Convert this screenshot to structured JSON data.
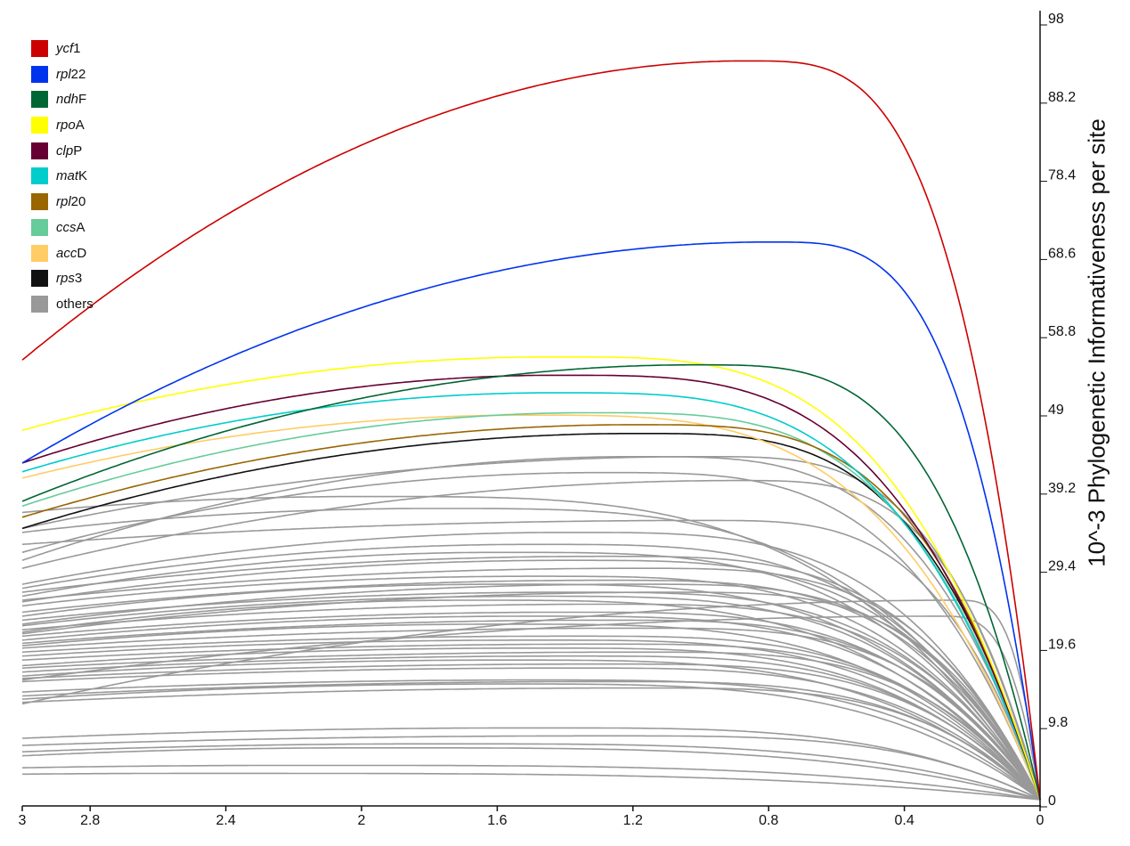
{
  "chart_data": {
    "type": "line",
    "ylabel": "10^-3 Phylogenetic Informativeness per site",
    "xlim": [
      3,
      0
    ],
    "ylim": [
      0,
      98
    ],
    "x_reversed": true,
    "y_axis_side": "right",
    "grid": false,
    "legend_placement": "top-left",
    "xticks": [
      "3",
      "2.8",
      "2.4",
      "2",
      "1.6",
      "1.2",
      "0.8",
      "0.4",
      "0"
    ],
    "xtick_values": [
      3,
      2.8,
      2.4,
      2,
      1.6,
      1.2,
      0.8,
      0.4,
      0
    ],
    "yticks": [
      "0",
      "9.8",
      "19.6",
      "29.4",
      "39.2",
      "49",
      "58.8",
      "68.6",
      "78.4",
      "88.2",
      "98"
    ],
    "ytick_values": [
      0,
      9.8,
      19.6,
      29.4,
      39.2,
      49,
      58.8,
      68.6,
      78.4,
      88.2,
      98
    ],
    "series_description_fields": [
      "value_at_x3",
      "peak_x",
      "peak_value"
    ],
    "series": [
      {
        "name": "ycf1",
        "italic": "ycf",
        "plain": "1",
        "color": "#cc0000",
        "value_at_x3": 55.1,
        "peak_x": 0.87,
        "peak_value": 92.6
      },
      {
        "name": "rpl22",
        "italic": "rpl",
        "plain": "22",
        "color": "#0033ee",
        "value_at_x3": 42.2,
        "peak_x": 0.8,
        "peak_value": 69.9
      },
      {
        "name": "ndhF",
        "italic": "ndh",
        "plain": "F",
        "color": "#006633",
        "value_at_x3": 37.4,
        "peak_x": 1.02,
        "peak_value": 54.5
      },
      {
        "name": "rpoA",
        "italic": "rpo",
        "plain": "A",
        "color": "#ffff00",
        "value_at_x3": 46.3,
        "peak_x": 1.44,
        "peak_value": 55.5
      },
      {
        "name": "clpP",
        "italic": "clp",
        "plain": "P",
        "color": "#660033",
        "value_at_x3": 42.2,
        "peak_x": 1.43,
        "peak_value": 53.2
      },
      {
        "name": "matK",
        "italic": "mat",
        "plain": "K",
        "color": "#00cccc",
        "value_at_x3": 41.1,
        "peak_x": 1.44,
        "peak_value": 51.0
      },
      {
        "name": "rpl20",
        "italic": "rpl",
        "plain": "20",
        "color": "#996600",
        "value_at_x3": 35.4,
        "peak_x": 1.2,
        "peak_value": 47.0
      },
      {
        "name": "ccsA",
        "italic": "ccs",
        "plain": "A",
        "color": "#66cc99",
        "value_at_x3": 36.8,
        "peak_x": 1.33,
        "peak_value": 48.5
      },
      {
        "name": "accD",
        "italic": "acc",
        "plain": "D",
        "color": "#ffcc66",
        "value_at_x3": 40.3,
        "peak_x": 1.52,
        "peak_value": 48.2
      },
      {
        "name": "rps3",
        "italic": "rps",
        "plain": "3",
        "color": "#111111",
        "value_at_x3": 34.0,
        "peak_x": 1.2,
        "peak_value": 45.9
      }
    ],
    "others": {
      "name": "others",
      "color": "#999999",
      "curves": [
        [
          33.5,
          1.8,
          36.5
        ],
        [
          34,
          1.0,
          43
        ],
        [
          31,
          1.3,
          41
        ],
        [
          30,
          1.2,
          43
        ],
        [
          27,
          1.4,
          33.5
        ],
        [
          26.5,
          1.5,
          32
        ],
        [
          26,
          1.3,
          30.5
        ],
        [
          25.5,
          1.6,
          31
        ],
        [
          25,
          1.2,
          29
        ],
        [
          24.8,
          1.4,
          30
        ],
        [
          24.3,
          1.5,
          28
        ],
        [
          23.5,
          1.3,
          27.5
        ],
        [
          23,
          1.6,
          27
        ],
        [
          22.5,
          1.4,
          26
        ],
        [
          22,
          1.2,
          27
        ],
        [
          21.8,
          1.5,
          25.5
        ],
        [
          21.3,
          1.3,
          24.5
        ],
        [
          21,
          1.7,
          25
        ],
        [
          20.8,
          1.1,
          26
        ],
        [
          20.5,
          1.4,
          23.5
        ],
        [
          20,
          1.5,
          23
        ],
        [
          19.6,
          1.3,
          22.5
        ],
        [
          19.3,
          1.6,
          22
        ],
        [
          19,
          1.2,
          21.5
        ],
        [
          18.5,
          1.4,
          20.5
        ],
        [
          18,
          1.5,
          20
        ],
        [
          17.5,
          1.3,
          19.5
        ],
        [
          16.8,
          1.5,
          19
        ],
        [
          16.5,
          1.2,
          18.5
        ],
        [
          16,
          1.4,
          18
        ],
        [
          15.5,
          1.6,
          17.5
        ],
        [
          15.2,
          1.3,
          17
        ],
        [
          14.8,
          1.4,
          16.5
        ],
        [
          13.5,
          1.5,
          15
        ],
        [
          13,
          1.3,
          14.8
        ],
        [
          12.6,
          1.6,
          14.5
        ],
        [
          12.2,
          1.2,
          14
        ],
        [
          7.7,
          1.5,
          9
        ],
        [
          6.8,
          1.3,
          8
        ],
        [
          6,
          1.8,
          7
        ],
        [
          5.5,
          2.0,
          6.5
        ],
        [
          4,
          2.2,
          4.3
        ],
        [
          3.2,
          2.5,
          3.3
        ],
        [
          12,
          0.25,
          25
        ],
        [
          15,
          0.3,
          23
        ],
        [
          29,
          0.9,
          40
        ],
        [
          32,
          1.0,
          35
        ],
        [
          36,
          2.0,
          38
        ]
      ]
    }
  },
  "legend": {
    "items": [
      {
        "italic": "ycf",
        "plain": "1",
        "color": "#cc0000"
      },
      {
        "italic": "rpl",
        "plain": "22",
        "color": "#0033ee"
      },
      {
        "italic": "ndh",
        "plain": "F",
        "color": "#006633"
      },
      {
        "italic": "rpo",
        "plain": "A",
        "color": "#ffff00"
      },
      {
        "italic": "clp",
        "plain": "P",
        "color": "#660033"
      },
      {
        "italic": "mat",
        "plain": "K",
        "color": "#00cccc"
      },
      {
        "italic": "rpl",
        "plain": "20",
        "color": "#996600"
      },
      {
        "italic": "ccs",
        "plain": "A",
        "color": "#66cc99"
      },
      {
        "italic": "acc",
        "plain": "D",
        "color": "#ffcc66"
      },
      {
        "italic": "rps",
        "plain": "3",
        "color": "#111111"
      },
      {
        "italic": "",
        "plain": "others",
        "color": "#999999"
      }
    ]
  }
}
